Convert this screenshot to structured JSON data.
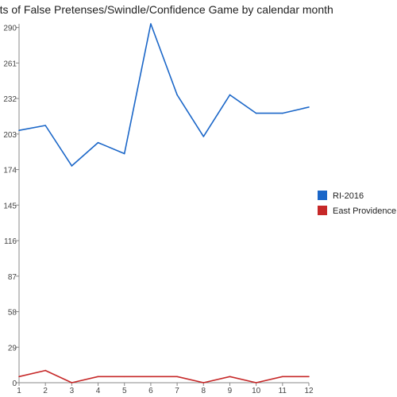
{
  "chart_data": {
    "type": "line",
    "title": "unts of False Pretenses/Swindle/Confidence Game by calendar month",
    "x": [
      1,
      2,
      3,
      4,
      5,
      6,
      7,
      8,
      9,
      10,
      11,
      12
    ],
    "x_tick_labels": [
      "1",
      "2",
      "3",
      "4",
      "5",
      "6",
      "7",
      "8",
      "9",
      "10",
      "11",
      "12"
    ],
    "y_tick_labels": [
      "0",
      "29",
      "58",
      "87",
      "116",
      "145",
      "174",
      "203",
      "232",
      "261",
      "290"
    ],
    "y_ticks": [
      0,
      29,
      58,
      87,
      116,
      145,
      174,
      203,
      232,
      261,
      290
    ],
    "ylim": [
      0,
      293
    ],
    "grid": false,
    "legend_placement": "right",
    "series": [
      {
        "name": "RI-2016",
        "color": "#1a66c8",
        "values": [
          206,
          210,
          177,
          196,
          187,
          293,
          235,
          201,
          235,
          220,
          220,
          225
        ]
      },
      {
        "name": "East Providence",
        "color": "#c62828",
        "values": [
          5,
          10,
          0,
          5,
          5,
          5,
          5,
          0,
          5,
          0,
          5,
          5
        ]
      }
    ]
  }
}
